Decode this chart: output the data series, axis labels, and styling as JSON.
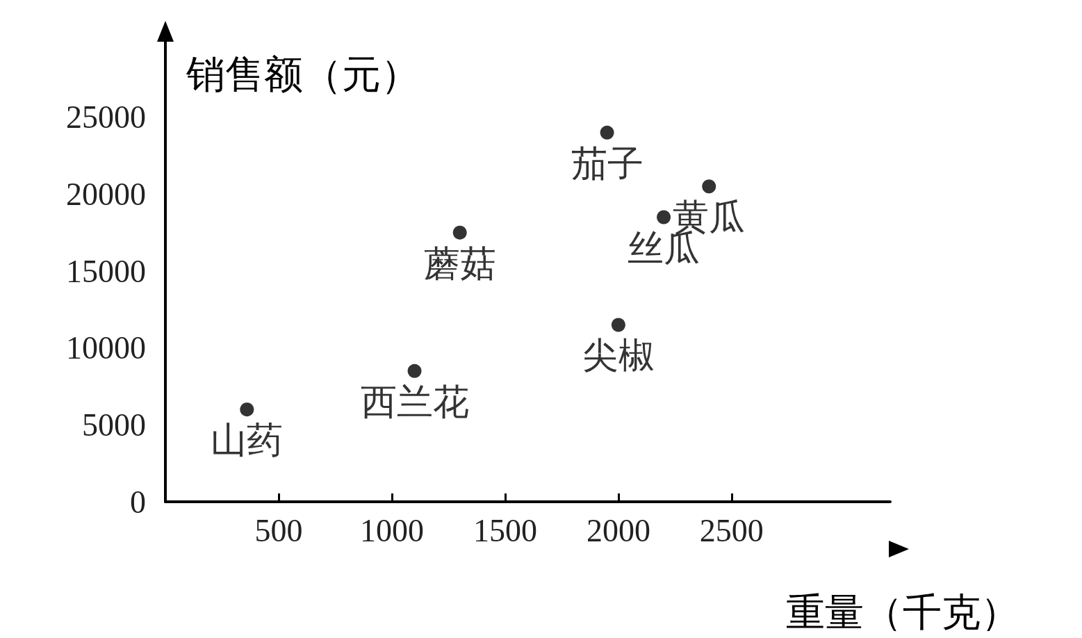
{
  "chart_data": {
    "type": "scatter",
    "xlabel": "重量（千克）",
    "ylabel": "销售额（元）",
    "x": [
      360,
      1100,
      1300,
      1950,
      2200,
      2400,
      2000
    ],
    "values": [
      6000,
      8500,
      17500,
      24000,
      18500,
      20500,
      11500
    ],
    "color": "#000000",
    "marker": "circle",
    "grid": false,
    "xlim": [
      0,
      3200
    ],
    "xticks": [
      500,
      1000,
      1500,
      2000,
      2500
    ],
    "ylim": [
      0,
      30000
    ],
    "yticks": [
      0,
      5000,
      10000,
      15000,
      20000,
      25000
    ],
    "annotations": [
      {
        "text": "山药",
        "x": 360,
        "y": 6000
      },
      {
        "text": "西兰花",
        "x": 1100,
        "y": 8500
      },
      {
        "text": "蘑菇",
        "x": 1300,
        "y": 17500
      },
      {
        "text": "茄子",
        "x": 1950,
        "y": 24000
      },
      {
        "text": "丝瓜",
        "x": 2200,
        "y": 18500
      },
      {
        "text": "黄瓜",
        "x": 2400,
        "y": 20500
      },
      {
        "text": "尖椒",
        "x": 2000,
        "y": 11500
      }
    ]
  }
}
